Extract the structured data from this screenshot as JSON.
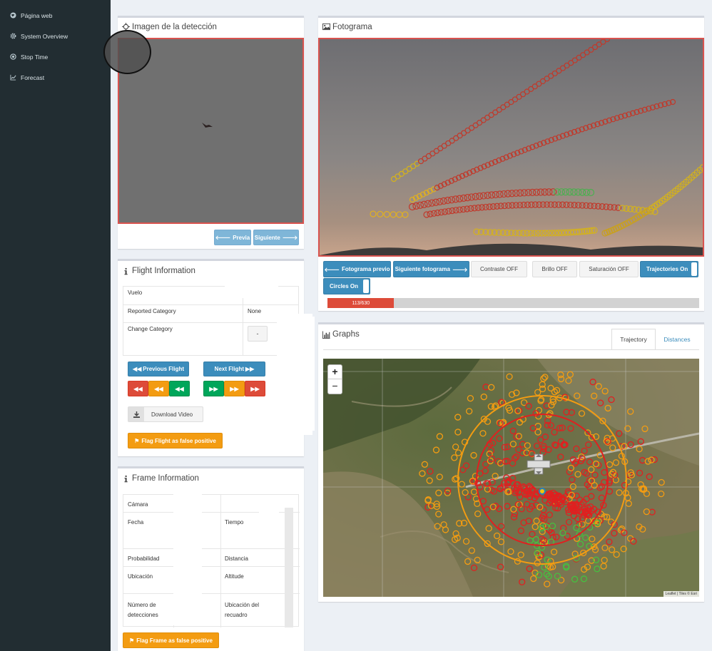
{
  "sidebar": {
    "items": [
      {
        "label": "Página web",
        "icon": "globe-icon"
      },
      {
        "label": "System Overview",
        "icon": "gear-icon"
      },
      {
        "label": "Stop Time",
        "icon": "dot-circle-icon"
      },
      {
        "label": "Forecast",
        "icon": "line-chart-icon"
      }
    ]
  },
  "detection": {
    "title": "Imagen de la detección",
    "prev_label": "Previa",
    "next_label": "Siguiente"
  },
  "flight": {
    "title": "Flight Information",
    "rows": {
      "vuelo": "Vuelo",
      "reported_category": "Reported Category",
      "reported_value": "None",
      "change_category": "Change Category",
      "change_value": "-"
    },
    "prev_flight_label": "Previous Flight",
    "next_flight_label": "Next Flight",
    "download_label": "Download Video",
    "flag_label": "Flag Flight as false positive"
  },
  "frame": {
    "title": "Frame Information",
    "left_rows": [
      "Cámara",
      "Fecha",
      "Probabilidad",
      "Ubicación",
      "Número de detecciones"
    ],
    "right_rows": [
      "Tiempo",
      "Distancia",
      "Altitude",
      "Ubicación del recuadro"
    ],
    "flag_label": "Flag Frame as false positive"
  },
  "fotograma": {
    "title": "Fotograma",
    "buttons": {
      "prev": "Fotograma previo",
      "next": "Siguiente fotograma",
      "contrast": "Contraste OFF",
      "brightness": "Brillo OFF",
      "saturation": "Saturación OFF",
      "trajectories": "Trajectories On",
      "circles": "Circles On"
    },
    "progress": {
      "label": "113/630",
      "fraction": 0.1794
    },
    "colors": {
      "accent": "#3c8dbc",
      "danger": "#dd4b39",
      "warning": "#f39c12",
      "success": "#00a65a"
    }
  },
  "graphs": {
    "title": "Graphs",
    "tabs": [
      "Trajectory",
      "Distances"
    ],
    "active_tab": "Trajectory",
    "zoom_in": "+",
    "zoom_out": "−",
    "attribution": "Leaflet | Tiles © Esri"
  }
}
